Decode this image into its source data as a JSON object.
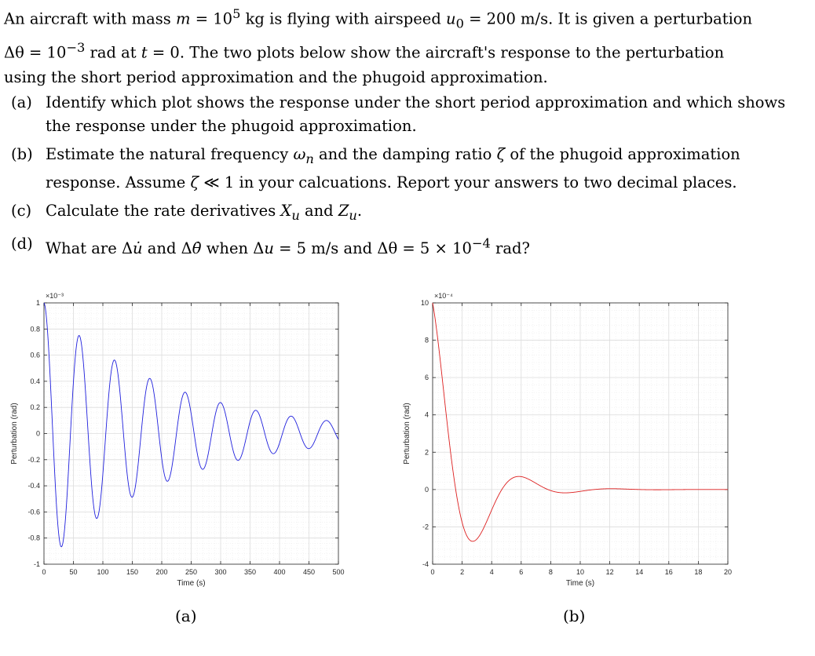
{
  "intro": {
    "line1_a": "An aircraft with mass ",
    "line1_m": "m",
    "line1_b": " = 10",
    "line1_exp": "5",
    "line1_c": " kg is flying with airspeed ",
    "line1_u": "u",
    "line1_sub": "0",
    "line1_d": " = 200 m/s. It is given a perturbation",
    "line2_a": "Δθ = 10",
    "line2_exp": "−3",
    "line2_b": " rad at ",
    "line2_t": "t",
    "line2_c": " = 0. The two plots below show the aircraft's response to the perturbation",
    "line3": "using the short period approximation and the phugoid approximation."
  },
  "questions": [
    {
      "label": "(a)",
      "text": "Identify which plot shows the response under the short period approximation and which shows the response under the phugoid approximation."
    },
    {
      "label": "(b)",
      "text_a": "Estimate the natural frequency ",
      "wn": "ω",
      "wn_sub": "n",
      "text_b": " and the damping ratio ",
      "zeta": "ζ",
      "text_c": " of the phugoid approximation response. Assume ",
      "zeta2": "ζ",
      "text_d": " ≪ 1 in your calcuations. Report your answers to two decimal places."
    },
    {
      "label": "(c)",
      "text_a": "Calculate the rate derivatives ",
      "X": "X",
      "X_sub": "u",
      "text_b": " and ",
      "Z": "Z",
      "Z_sub": "u",
      "text_c": "."
    },
    {
      "label": "(d)",
      "text_a": "What are Δ",
      "udot": "u̇",
      "text_b": " and Δ",
      "thetadot": "θ̇",
      "text_c": " when Δ",
      "u": "u",
      "text_d": " = 5 m/s and Δθ = 5 × 10",
      "exp": "−4",
      "text_e": " rad?"
    }
  ],
  "captions": {
    "a": "(a)",
    "b": "(b)"
  },
  "chart_data": [
    {
      "type": "line",
      "xlabel": "Time (s)",
      "ylabel": "Perturbation (rad)",
      "exponent_label": "×10⁻³",
      "xlim": [
        0,
        500
      ],
      "ylim": [
        -1,
        1
      ],
      "xticks": [
        0,
        50,
        100,
        150,
        200,
        250,
        300,
        350,
        400,
        450,
        500
      ],
      "yticks": [
        -1,
        -0.8,
        -0.6,
        -0.4,
        -0.2,
        0,
        0.2,
        0.4,
        0.6,
        0.8,
        1
      ],
      "ytick_labels": [
        "-1",
        "-0.8",
        "-0.6",
        "-0.4",
        "-0.2",
        "0",
        "0.2",
        "0.4",
        "0.6",
        "0.8",
        "1"
      ],
      "grid": true,
      "color": "#1f1fdd",
      "series": [
        {
          "model": "damped_cosine",
          "amplitude": 1.0,
          "period": 60,
          "decay_rate": 0.0048,
          "t_end": 500
        }
      ]
    },
    {
      "type": "line",
      "xlabel": "Time (s)",
      "ylabel": "Perturbation (rad)",
      "exponent_label": "×10⁻⁴",
      "xlim": [
        0,
        20
      ],
      "ylim": [
        -4,
        10
      ],
      "xticks": [
        0,
        2,
        4,
        6,
        8,
        10,
        12,
        14,
        16,
        18,
        20
      ],
      "yticks": [
        -4,
        -2,
        0,
        2,
        4,
        6,
        8,
        10
      ],
      "ytick_labels": [
        "-4",
        "-2",
        "0",
        "2",
        "4",
        "6",
        "8",
        "10"
      ],
      "grid": true,
      "color": "#dd1f1f",
      "series": [
        {
          "model": "damped_cosine",
          "amplitude": 10.0,
          "period": 6.25,
          "decay_rate": 0.44,
          "t_end": 20
        }
      ]
    }
  ]
}
